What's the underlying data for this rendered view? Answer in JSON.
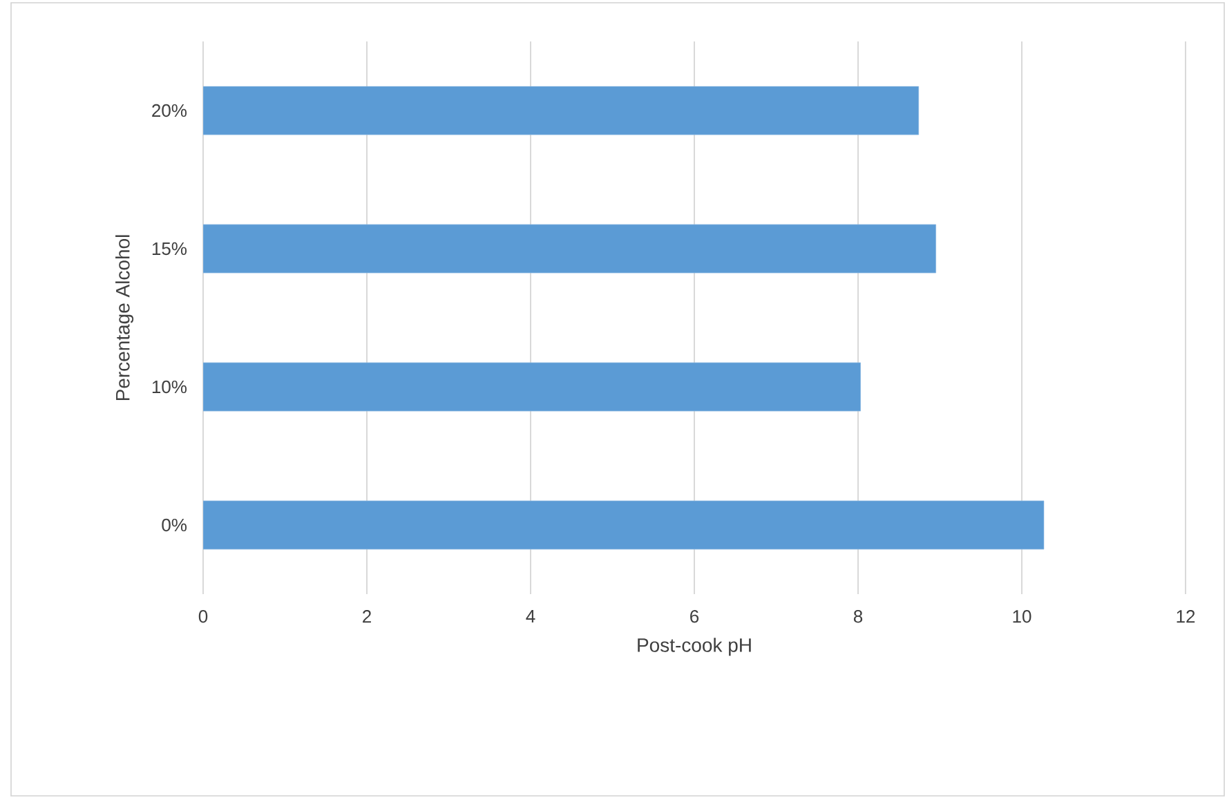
{
  "chart_data": {
    "type": "bar",
    "orientation": "horizontal",
    "xlabel": "Post-cook pH",
    "ylabel": "Percentage Alcohol",
    "categories": [
      "20%",
      "15%",
      "10%",
      "0%"
    ],
    "values": [
      8.74,
      8.95,
      8.03,
      10.27
    ],
    "color": "#5b9bd5",
    "xlim": [
      0,
      12
    ],
    "xticks": [
      0,
      2,
      4,
      6,
      8,
      10,
      12
    ],
    "grid": "x"
  }
}
